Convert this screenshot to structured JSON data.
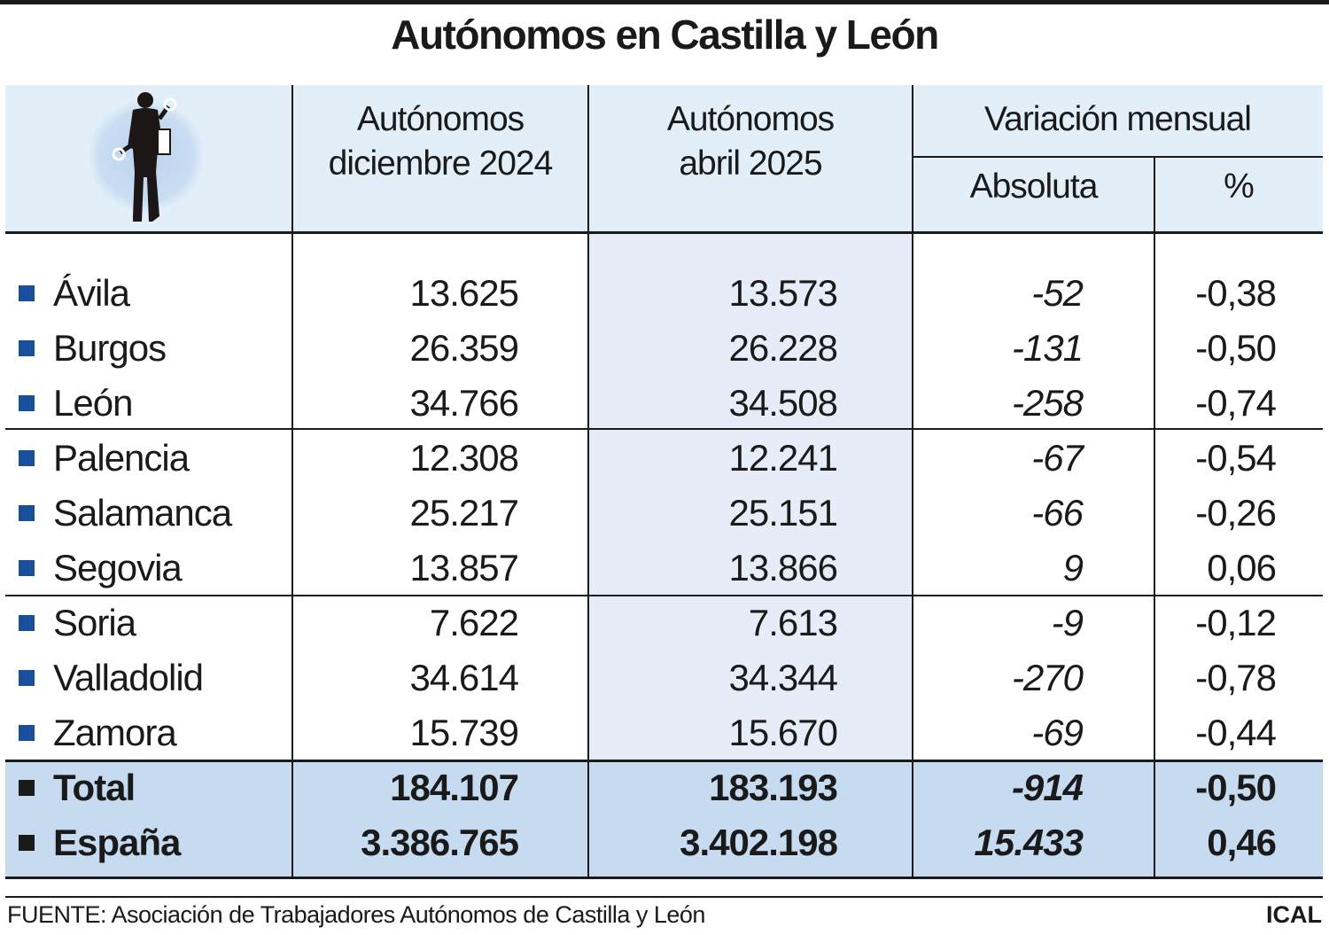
{
  "title": "Autónomos en Castilla y León",
  "colors": {
    "header_bg": "#e2eff9",
    "highlight_col_bg": "#e6ecf8",
    "totals_bg": "#c6dbf0",
    "province_bullet": "#1a4f9c",
    "total_bullet": "#1a1a1a"
  },
  "icon": "self-employed-worker-silhouette-icon",
  "chart_data": {
    "type": "table",
    "title": "Autónomos en Castilla y León",
    "columns": [
      "",
      "Autónomos diciembre 2024",
      "Autónomos abril 2025",
      "Variación mensual — Absoluta",
      "Variación mensual — %"
    ],
    "header": {
      "col1": [
        "Autónomos",
        "diciembre 2024"
      ],
      "col2": [
        "Autónomos",
        "abril 2025"
      ],
      "group": "Variación mensual",
      "sub1": "Absoluta",
      "sub2": "%"
    },
    "rows": [
      {
        "name": "Ávila",
        "dic2024": "13.625",
        "abr2025": "13.573",
        "abs": "-52",
        "pct": "-0,38"
      },
      {
        "name": "Burgos",
        "dic2024": "26.359",
        "abr2025": "26.228",
        "abs": "-131",
        "pct": "-0,50"
      },
      {
        "name": "León",
        "dic2024": "34.766",
        "abr2025": "34.508",
        "abs": "-258",
        "pct": "-0,74"
      },
      {
        "name": "Palencia",
        "dic2024": "12.308",
        "abr2025": "12.241",
        "abs": "-67",
        "pct": "-0,54"
      },
      {
        "name": "Salamanca",
        "dic2024": "25.217",
        "abr2025": "25.151",
        "abs": "-66",
        "pct": "-0,26"
      },
      {
        "name": "Segovia",
        "dic2024": "13.857",
        "abr2025": "13.866",
        "abs": "9",
        "pct": "0,06"
      },
      {
        "name": "Soria",
        "dic2024": "7.622",
        "abr2025": "7.613",
        "abs": "-9",
        "pct": "-0,12"
      },
      {
        "name": "Valladolid",
        "dic2024": "34.614",
        "abr2025": "34.344",
        "abs": "-270",
        "pct": "-0,78"
      },
      {
        "name": "Zamora",
        "dic2024": "15.739",
        "abr2025": "15.670",
        "abs": "-69",
        "pct": "-0,44"
      }
    ],
    "totals": [
      {
        "name": "Total",
        "dic2024": "184.107",
        "abr2025": "183.193",
        "abs": "-914",
        "pct": "-0,50"
      },
      {
        "name": "España",
        "dic2024": "3.386.765",
        "abr2025": "3.402.198",
        "abs": "15.433",
        "pct": "0,46"
      }
    ]
  },
  "footer": {
    "source": "FUENTE: Asociación de Trabajadores Autónomos de Castilla y León",
    "credit": "ICAL"
  }
}
